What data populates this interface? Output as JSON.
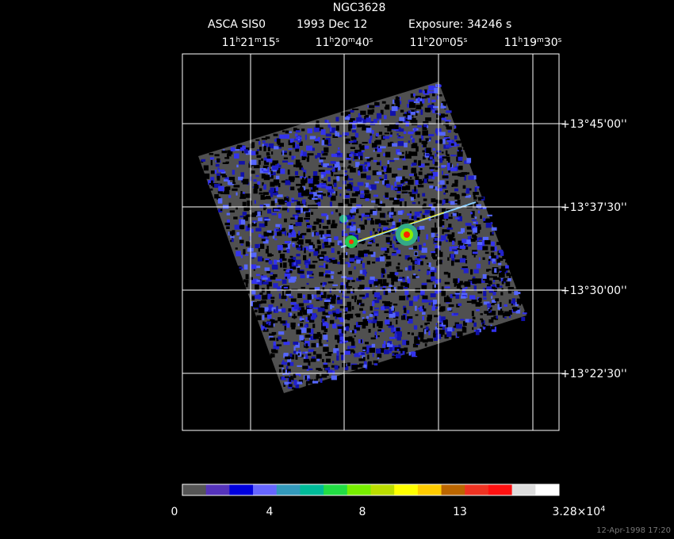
{
  "header": {
    "object": "NGC3628",
    "instrument": "ASCA SIS0",
    "date": "1993 Dec 12",
    "exposure": "Exposure: 34246 s"
  },
  "ra_labels": [
    {
      "hours": "11",
      "minutes": "21",
      "seconds": "15"
    },
    {
      "hours": "11",
      "minutes": "20",
      "seconds": "40"
    },
    {
      "hours": "11",
      "minutes": "20",
      "seconds": "05"
    },
    {
      "hours": "11",
      "minutes": "19",
      "seconds": "30"
    }
  ],
  "ra_units": [
    "h",
    "m",
    "s"
  ],
  "dec_labels": [
    "+13°45'00''",
    "+13°37'30''",
    "+13°30'00''",
    "+13°22'30''"
  ],
  "colorbar": {
    "colors": [
      "#555555",
      "#5533bb",
      "#0000dd",
      "#6666ff",
      "#3399bb",
      "#00bb99",
      "#22dd44",
      "#77ee00",
      "#bbdd00",
      "#ffff00",
      "#ffcc00",
      "#bb6600",
      "#ee3322",
      "#ff1111",
      "#dddddd",
      "#ffffff"
    ],
    "labels": [
      "0",
      "4",
      "8",
      "13"
    ],
    "max_label": {
      "mantissa": "3.28×10",
      "exponent": "4"
    }
  },
  "timestamp": "12-Apr-1998 17:20"
}
